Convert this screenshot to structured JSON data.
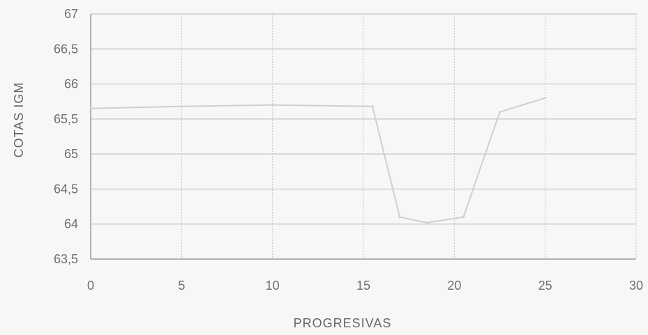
{
  "chart_data": {
    "type": "line",
    "xlabel": "PROGRESIVAS",
    "ylabel": "COTAS IGM",
    "xlim": [
      0,
      30
    ],
    "ylim": [
      63.5,
      67
    ],
    "x_ticks": [
      0,
      5,
      10,
      15,
      20,
      25,
      30
    ],
    "x_tick_labels": [
      "0",
      "5",
      "10",
      "15",
      "20",
      "25",
      "30"
    ],
    "y_ticks": [
      63.5,
      64,
      64.5,
      65,
      65.5,
      66,
      66.5,
      67
    ],
    "y_tick_labels": [
      "63,5",
      "64",
      "64,5",
      "65",
      "65,5",
      "66",
      "66,5",
      "67"
    ],
    "grid": true,
    "legend": "none",
    "series": [
      {
        "color": "#cfcfcf",
        "x": [
          0,
          5,
          10,
          15.5,
          17,
          18.5,
          20.5,
          22.5,
          25
        ],
        "y": [
          65.65,
          65.68,
          65.7,
          65.68,
          64.1,
          64.02,
          64.1,
          65.6,
          65.8
        ]
      }
    ],
    "colors": {
      "grid": "#c4c4c4",
      "axis": "#9a9a9a",
      "background": "#f7f7f5"
    }
  }
}
